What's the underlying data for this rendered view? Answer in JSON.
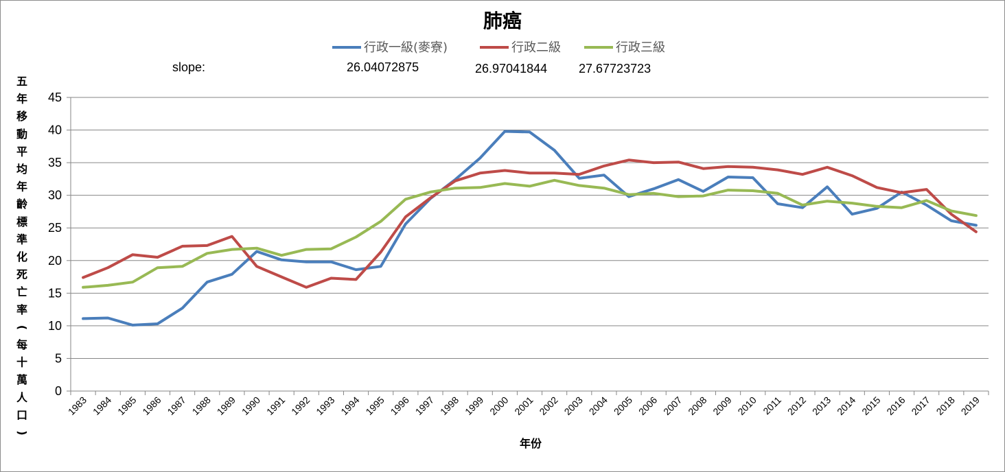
{
  "chart_data": {
    "type": "line",
    "title": "肺癌",
    "xlabel": "年份",
    "ylabel": "五年移動平均年齡標準化死亡率(每十萬人口)",
    "ylim": [
      0,
      45
    ],
    "yticks": [
      0,
      5,
      10,
      15,
      20,
      25,
      30,
      35,
      40,
      45
    ],
    "grid": true,
    "legend_position": "top",
    "categories": [
      "1983",
      "1984",
      "1985",
      "1986",
      "1987",
      "1988",
      "1989",
      "1990",
      "1991",
      "1992",
      "1993",
      "1994",
      "1995",
      "1996",
      "1997",
      "1998",
      "1999",
      "2000",
      "2001",
      "2002",
      "2003",
      "2004",
      "2005",
      "2006",
      "2007",
      "2008",
      "2009",
      "2010",
      "2011",
      "2012",
      "2013",
      "2014",
      "2015",
      "2016",
      "2017",
      "2018",
      "2019"
    ],
    "series": [
      {
        "name": "行政一級(麥寮)",
        "color": "#4a7ebb",
        "values": [
          11.1,
          11.2,
          10.1,
          10.3,
          12.7,
          16.7,
          17.9,
          21.4,
          20.1,
          19.8,
          19.8,
          18.6,
          19.1,
          25.6,
          29.5,
          32.4,
          35.7,
          39.8,
          39.7,
          36.9,
          32.6,
          33.1,
          29.8,
          31.0,
          32.4,
          30.6,
          32.8,
          32.7,
          28.7,
          28.1,
          31.3,
          27.1,
          28.0,
          30.5,
          28.5,
          26.1,
          25.4
        ]
      },
      {
        "name": "行政二級",
        "color": "#be4b48",
        "values": [
          17.4,
          18.9,
          20.9,
          20.5,
          22.2,
          22.3,
          23.7,
          19.1,
          17.5,
          15.9,
          17.3,
          17.1,
          21.3,
          26.7,
          29.6,
          32.2,
          33.4,
          33.8,
          33.4,
          33.4,
          33.2,
          34.5,
          35.4,
          35.0,
          35.1,
          34.1,
          34.4,
          34.3,
          33.9,
          33.2,
          34.3,
          33.0,
          31.2,
          30.4,
          30.9,
          27.1,
          24.4
        ]
      },
      {
        "name": "行政三級",
        "color": "#98b954",
        "values": [
          15.9,
          16.2,
          16.7,
          18.9,
          19.1,
          21.1,
          21.7,
          21.9,
          20.8,
          21.7,
          21.8,
          23.6,
          26.0,
          29.4,
          30.5,
          31.1,
          31.2,
          31.8,
          31.4,
          32.3,
          31.5,
          31.1,
          30.1,
          30.3,
          29.8,
          29.9,
          30.8,
          30.7,
          30.3,
          28.5,
          29.1,
          28.8,
          28.3,
          28.1,
          29.2,
          27.6,
          26.9
        ]
      }
    ],
    "annotations": {
      "slope_label": "slope:",
      "slope_values": [
        "26.04072875",
        "26.97041844",
        "27.67723723"
      ]
    }
  }
}
